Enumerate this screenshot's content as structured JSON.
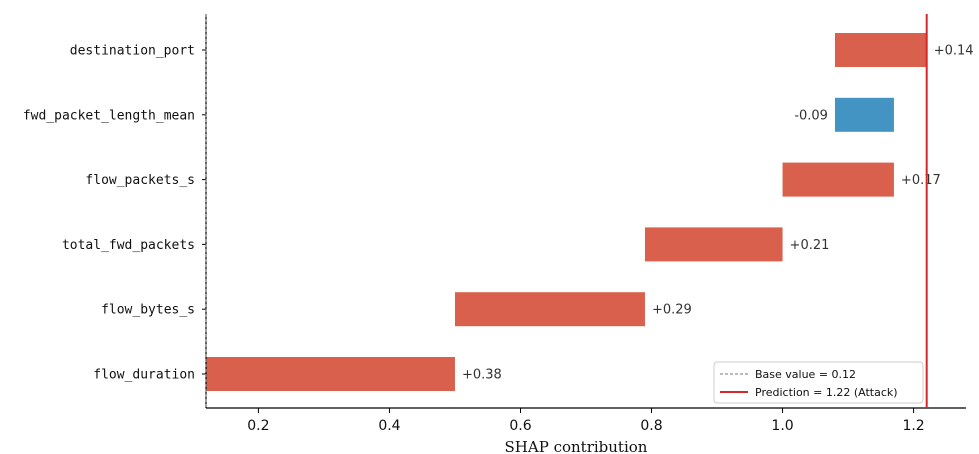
{
  "chart_data": {
    "type": "bar",
    "orientation": "horizontal-waterfall",
    "base_value": 0.12,
    "prediction": 1.22,
    "features": [
      {
        "name": "destination_port",
        "start": 1.08,
        "value": 0.14,
        "label": "+0.14"
      },
      {
        "name": "fwd_packet_length_mean",
        "start": 1.17,
        "value": -0.09,
        "label": "-0.09"
      },
      {
        "name": "flow_packets_s",
        "start": 1.0,
        "value": 0.17,
        "label": "+0.17"
      },
      {
        "name": "total_fwd_packets",
        "start": 0.79,
        "value": 0.21,
        "label": "+0.21"
      },
      {
        "name": "flow_bytes_s",
        "start": 0.5,
        "value": 0.29,
        "label": "+0.29"
      },
      {
        "name": "flow_duration",
        "start": 0.12,
        "value": 0.38,
        "label": "+0.38"
      }
    ],
    "xticks": [
      "0.2",
      "0.4",
      "0.6",
      "0.8",
      "1.0",
      "1.2"
    ],
    "xlim": [
      0.12,
      1.28
    ],
    "xlabel": "SHAP contribution",
    "legend": {
      "placement": "lower-right",
      "entries": [
        "Base value = 0.12",
        "Prediction = 1.22 (Attack)"
      ]
    },
    "colors": {
      "positive": "#d9604c",
      "negative": "#4393c3",
      "prediction_line": "#d62728",
      "base_line": "#777777"
    }
  }
}
